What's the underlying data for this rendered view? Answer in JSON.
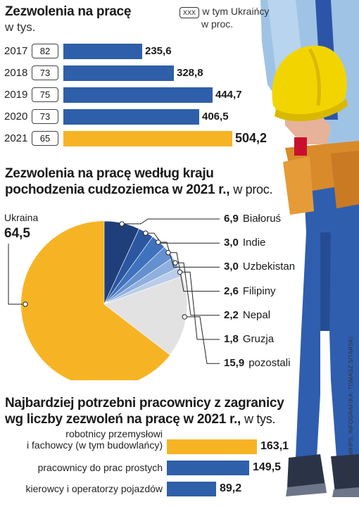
{
  "section1": {
    "title": "Zezwolenia na pracę",
    "unit": "w tys.",
    "legend_box": "XXX",
    "legend_text_1": "w tym Ukraińcy",
    "legend_text_2": "w proc."
  },
  "section2": {
    "title_line1": "Zezwolenia na pracę według kraju",
    "title_line2": "pochodzenia cudzoziemca w 2021 r.,",
    "unit": "w proc."
  },
  "section3": {
    "title_line1": "Najbardziej potrzebni pracownicy z zagranicy",
    "title_line2": "wg liczby zezwoleń na pracę w 2021 r.,",
    "unit": "w tys."
  },
  "source": "ŹRÓDŁO: MRIPS, INFOGRAFIKA: TOMASZ SITARSKI",
  "colors": {
    "blue": "#2e5fa8",
    "orange": "#f6b425",
    "highlight_year": "2021"
  },
  "chart_data": [
    {
      "type": "bar",
      "title": "Zezwolenia na pracę",
      "unit": "w tys.",
      "categories": [
        "2017",
        "2018",
        "2019",
        "2020",
        "2021"
      ],
      "values": [
        235.6,
        328.8,
        444.7,
        406.5,
        504.2
      ],
      "labels": [
        "235,6",
        "328,8",
        "444,7",
        "406,5",
        "504,2"
      ],
      "ukraine_share": [
        "82",
        "73",
        "75",
        "73",
        "65"
      ],
      "xlim": [
        0,
        504.2
      ]
    },
    {
      "type": "pie",
      "title": "Zezwolenia na pracę według kraju pochodzenia cudzoziemca w 2021 r., w proc.",
      "slices": [
        {
          "name": "Ukraina",
          "value": 64.5,
          "label": "64,5",
          "color": "#f6b425"
        },
        {
          "name": "Białoruś",
          "value": 6.9,
          "label": "6,9",
          "color": "#1f3f7a"
        },
        {
          "name": "Indie",
          "value": 3.0,
          "label": "3,0",
          "color": "#2b56a0"
        },
        {
          "name": "Uzbekistan",
          "value": 3.0,
          "label": "3,0",
          "color": "#3f72bd"
        },
        {
          "name": "Filipiny",
          "value": 2.6,
          "label": "2,6",
          "color": "#6590cf"
        },
        {
          "name": "Nepal",
          "value": 2.2,
          "label": "2,2",
          "color": "#8fb0de"
        },
        {
          "name": "Gruzja",
          "value": 1.8,
          "label": "1,8",
          "color": "#b9cdea"
        },
        {
          "name": "pozostali",
          "value": 15.9,
          "label": "15,9",
          "color": "#e2e2e2"
        }
      ]
    },
    {
      "type": "bar",
      "title": "Najbardziej potrzebni pracownicy z zagranicy wg liczby zezwoleń na pracę w 2021 r., w tys.",
      "categories": [
        "robotnicy przemysłowi i fachowcy (w tym budowlańcy)",
        "pracownicy do prac prostych",
        "kierowcy i operatorzy pojazdów"
      ],
      "category_lines": [
        [
          "robotnicy przemysłowi",
          "i fachowcy (w tym budowlańcy)"
        ],
        [
          "pracownicy do prac prostych"
        ],
        [
          "kierowcy i operatorzy pojazdów"
        ]
      ],
      "values": [
        163.1,
        149.5,
        89.2
      ],
      "labels": [
        "163,1",
        "149,5",
        "89,2"
      ],
      "highlight": [
        true,
        false,
        false
      ],
      "xlim": [
        0,
        163.1
      ]
    }
  ]
}
